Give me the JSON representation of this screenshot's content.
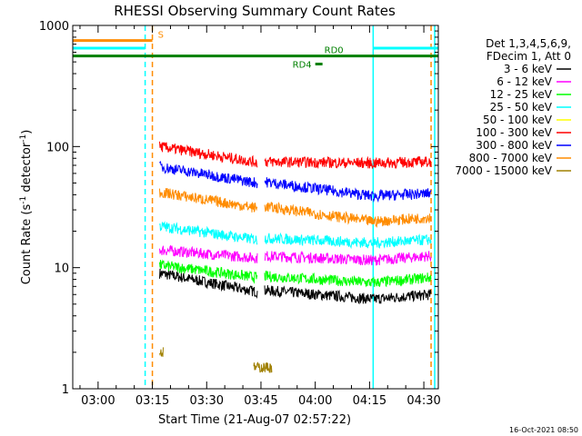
{
  "chart_data": {
    "type": "line",
    "title": "RHESSI Observing Summary Count Rates",
    "xlabel": "Start Time (21-Aug-07 02:57:22)",
    "ylabel_main": "Count Rate (s",
    "ylabel_sup1": "-1",
    "ylabel_mid": " detector",
    "ylabel_sup2": "-1",
    "ylabel_end": ")",
    "yscale": "log",
    "xlim": [
      "02:53",
      "04:34"
    ],
    "ylim": [
      1,
      1000
    ],
    "x_ticks": [
      "03:00",
      "03:15",
      "03:30",
      "03:45",
      "04:00",
      "04:15",
      "04:30"
    ],
    "y_ticks": [
      "1",
      "10",
      "100",
      "1000"
    ],
    "legend_header": [
      "Det 1,3,4,5,6,9,",
      "FDecim 1, Att 0"
    ],
    "series": [
      {
        "name": "3 - 6 keV",
        "color": "#000000",
        "segments": [
          {
            "from": "03:17",
            "to": "03:44",
            "start": 9.0,
            "end": 6.3
          },
          {
            "from": "03:46",
            "to": "04:16",
            "start": 6.5,
            "end": 5.5
          },
          {
            "from": "04:16",
            "to": "04:32",
            "start": 5.5,
            "end": 6.0
          }
        ]
      },
      {
        "name": "6 - 12 keV",
        "color": "#ff00ff",
        "segments": [
          {
            "from": "03:17",
            "to": "03:44",
            "start": 14.0,
            "end": 12.0
          },
          {
            "from": "03:46",
            "to": "04:16",
            "start": 12.5,
            "end": 11.5
          },
          {
            "from": "04:16",
            "to": "04:32",
            "start": 11.5,
            "end": 12.5
          }
        ]
      },
      {
        "name": "12 - 25 keV",
        "color": "#00ff00",
        "segments": [
          {
            "from": "03:17",
            "to": "03:44",
            "start": 10.5,
            "end": 8.3
          },
          {
            "from": "03:46",
            "to": "04:16",
            "start": 8.5,
            "end": 7.5
          },
          {
            "from": "04:16",
            "to": "04:32",
            "start": 7.5,
            "end": 8.3
          }
        ]
      },
      {
        "name": "25 - 50 keV",
        "color": "#00ffff",
        "segments": [
          {
            "from": "03:17",
            "to": "03:44",
            "start": 22.0,
            "end": 17.0
          },
          {
            "from": "03:46",
            "to": "04:16",
            "start": 17.5,
            "end": 16.0
          },
          {
            "from": "04:16",
            "to": "04:32",
            "start": 16.0,
            "end": 17.0
          }
        ]
      },
      {
        "name": "50 - 100 keV",
        "color": "#ffff00",
        "segments": []
      },
      {
        "name": "100 - 300 keV",
        "color": "#ff0000",
        "segments": [
          {
            "from": "03:17",
            "to": "03:44",
            "start": 100.0,
            "end": 74.0
          },
          {
            "from": "03:46",
            "to": "04:16",
            "start": 75.0,
            "end": 73.0
          },
          {
            "from": "04:16",
            "to": "04:32",
            "start": 73.0,
            "end": 75.0
          }
        ]
      },
      {
        "name": "300 - 800 keV",
        "color": "#0000ff",
        "segments": [
          {
            "from": "03:17",
            "to": "03:44",
            "start": 68.0,
            "end": 50.0
          },
          {
            "from": "03:46",
            "to": "04:16",
            "start": 51.0,
            "end": 39.0
          },
          {
            "from": "04:16",
            "to": "04:32",
            "start": 39.0,
            "end": 41.0
          }
        ]
      },
      {
        "name": "800 - 7000 keV",
        "color": "#ff8c00",
        "segments": [
          {
            "from": "03:17",
            "to": "03:44",
            "start": 42.0,
            "end": 31.0
          },
          {
            "from": "03:46",
            "to": "04:16",
            "start": 32.0,
            "end": 24.0
          },
          {
            "from": "04:16",
            "to": "04:32",
            "start": 24.0,
            "end": 26.0
          }
        ]
      },
      {
        "name": "7000 - 15000 keV",
        "color": "#a08000",
        "segments": [
          {
            "from": "03:17",
            "to": "03:18",
            "start": 2.0,
            "end": 2.0
          },
          {
            "from": "03:43",
            "to": "03:48",
            "start": 1.5,
            "end": 1.5
          }
        ]
      }
    ],
    "flags": [
      {
        "label": "S",
        "color": "#ff8c00",
        "from": "02:53",
        "to": "03:15",
        "y": 750
      },
      {
        "label": "",
        "color": "#00ffff",
        "from": "02:53",
        "to": "03:13",
        "y": 650
      },
      {
        "label": "",
        "color": "#00ffff",
        "from": "04:16",
        "to": "04:34",
        "y": 650
      },
      {
        "label": "RD0",
        "color": "#008000",
        "from": "02:53",
        "to": "04:34",
        "y": 560
      },
      {
        "label": "RD4",
        "color": "#008000",
        "from": "04:00",
        "to": "04:02",
        "y": 480
      }
    ],
    "vlines": [
      {
        "x": "03:13",
        "color": "#00ffff",
        "style": "dashed"
      },
      {
        "x": "03:15",
        "color": "#ff8c00",
        "style": "dashed"
      },
      {
        "x": "04:16",
        "color": "#00ffff",
        "style": "solid"
      },
      {
        "x": "04:32",
        "color": "#ff8c00",
        "style": "dashed"
      },
      {
        "x": "04:33",
        "color": "#00ffff",
        "style": "solid"
      }
    ],
    "grid": false,
    "legend_position": "right"
  },
  "footer": {
    "timestamp": "16-Oct-2021 08:50"
  }
}
